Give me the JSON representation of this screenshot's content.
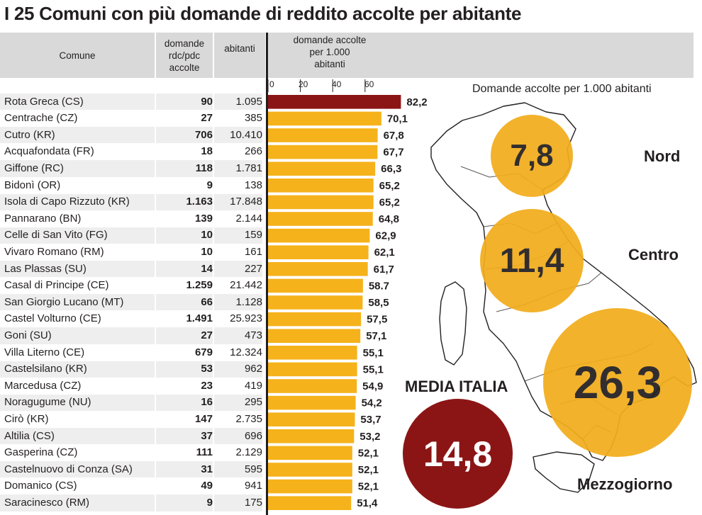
{
  "title": "I 25 Comuni con più domande di reddito accolte per abitante",
  "header": {
    "comune": "Comune",
    "domande": [
      "domande",
      "rdc/pdc",
      "accolte"
    ],
    "abitanti": "abitanti",
    "accolte": [
      "domande accolte",
      "per 1.000",
      "abitanti"
    ]
  },
  "rows": [
    {
      "comune": "Rota Greca (CS)",
      "domande": "90",
      "abitanti": "1.095",
      "valore": "82,2"
    },
    {
      "comune": "Centrache (CZ)",
      "domande": "27",
      "abitanti": "385",
      "valore": "70,1"
    },
    {
      "comune": "Cutro (KR)",
      "domande": "706",
      "abitanti": "10.410",
      "valore": "67,8"
    },
    {
      "comune": "Acquafondata (FR)",
      "domande": "18",
      "abitanti": "266",
      "valore": "67,7"
    },
    {
      "comune": "Giffone (RC)",
      "domande": "118",
      "abitanti": "1.781",
      "valore": "66,3"
    },
    {
      "comune": "Bidonì (OR)",
      "domande": "9",
      "abitanti": "138",
      "valore": "65,2"
    },
    {
      "comune": "Isola di Capo Rizzuto (KR)",
      "domande": "1.163",
      "abitanti": "17.848",
      "valore": "65,2"
    },
    {
      "comune": "Pannarano (BN)",
      "domande": "139",
      "abitanti": "2.144",
      "valore": "64,8"
    },
    {
      "comune": "Celle di San Vito (FG)",
      "domande": "10",
      "abitanti": "159",
      "valore": "62,9"
    },
    {
      "comune": "Vivaro Romano (RM)",
      "domande": "10",
      "abitanti": "161",
      "valore": "62,1"
    },
    {
      "comune": "Las Plassas (SU)",
      "domande": "14",
      "abitanti": "227",
      "valore": "61,7"
    },
    {
      "comune": "Casal di Principe (CE)",
      "domande": "1.259",
      "abitanti": "21.442",
      "valore": "58.7"
    },
    {
      "comune": "San Giorgio Lucano (MT)",
      "domande": "66",
      "abitanti": "1.128",
      "valore": "58,5"
    },
    {
      "comune": "Castel Volturno (CE)",
      "domande": "1.491",
      "abitanti": "25.923",
      "valore": "57,5"
    },
    {
      "comune": "Goni (SU)",
      "domande": "27",
      "abitanti": "473",
      "valore": "57,1"
    },
    {
      "comune": "Villa Literno (CE)",
      "domande": "679",
      "abitanti": "12.324",
      "valore": "55,1"
    },
    {
      "comune": "Castelsilano (KR)",
      "domande": "53",
      "abitanti": "962",
      "valore": "55,1"
    },
    {
      "comune": "Marcedusa (CZ)",
      "domande": "23",
      "abitanti": "419",
      "valore": "54,9"
    },
    {
      "comune": "Noragugume (NU)",
      "domande": "16",
      "abitanti": "295",
      "valore": "54,2"
    },
    {
      "comune": "Cirò (KR)",
      "domande": "147",
      "abitanti": "2.735",
      "valore": "53,7"
    },
    {
      "comune": "Altilia (CS)",
      "domande": "37",
      "abitanti": "696",
      "valore": "53,2"
    },
    {
      "comune": "Gasperina (CZ)",
      "domande": "111",
      "abitanti": "2.129",
      "valore": "52,1"
    },
    {
      "comune": "Castelnuovo di Conza (SA)",
      "domande": "31",
      "abitanti": "595",
      "valore": "52,1"
    },
    {
      "comune": "Domanico (CS)",
      "domande": "49",
      "abitanti": "941",
      "valore": "52,1"
    },
    {
      "comune": "Saracinesco (RM)",
      "domande": "9",
      "abitanti": "175",
      "valore": "51,4"
    }
  ],
  "subtitle": "Domande accolte per 1.000 abitanti",
  "regions": [
    {
      "name": "Nord",
      "value": "7,8"
    },
    {
      "name": "Centro",
      "value": "11,4"
    },
    {
      "name": "Mezzogiorno",
      "value": "26,3"
    }
  ],
  "media": {
    "label": "MEDIA ITALIA",
    "value": "14,8"
  },
  "colors": {
    "bar": "#f5b21a",
    "bar_top": "#8b1515",
    "circle": "#f2ad1c",
    "header": "#d9d9d9",
    "row_alt": "#eeeeee"
  },
  "chart_data": {
    "type": "bar",
    "orientation": "horizontal",
    "title": "I 25 Comuni con più domande di reddito accolte per abitante",
    "xlabel": "domande accolte per 1.000 abitanti",
    "xticks": [
      0,
      20,
      40,
      60
    ],
    "categories": [
      "Rota Greca (CS)",
      "Centrache (CZ)",
      "Cutro (KR)",
      "Acquafondata (FR)",
      "Giffone (RC)",
      "Bidonì (OR)",
      "Isola di Capo Rizzuto (KR)",
      "Pannarano (BN)",
      "Celle di San Vito (FG)",
      "Vivaro Romano (RM)",
      "Las Plassas (SU)",
      "Casal di Principe (CE)",
      "San Giorgio Lucano (MT)",
      "Castel Volturno (CE)",
      "Goni (SU)",
      "Villa Literno (CE)",
      "Castelsilano (KR)",
      "Marcedusa (CZ)",
      "Noragugume (NU)",
      "Cirò (KR)",
      "Altilia (CS)",
      "Gasperina (CZ)",
      "Castelnuovo di Conza (SA)",
      "Domanico (CS)",
      "Saracinesco (RM)"
    ],
    "values": [
      82.2,
      70.1,
      67.8,
      67.7,
      66.3,
      65.2,
      65.2,
      64.8,
      62.9,
      62.1,
      61.7,
      58.7,
      58.5,
      57.5,
      57.1,
      55.1,
      55.1,
      54.9,
      54.2,
      53.7,
      53.2,
      52.1,
      52.1,
      52.1,
      51.4
    ],
    "regional_averages": {
      "Nord": 7.8,
      "Centro": 11.4,
      "Mezzogiorno": 26.3,
      "Media Italia": 14.8
    }
  }
}
